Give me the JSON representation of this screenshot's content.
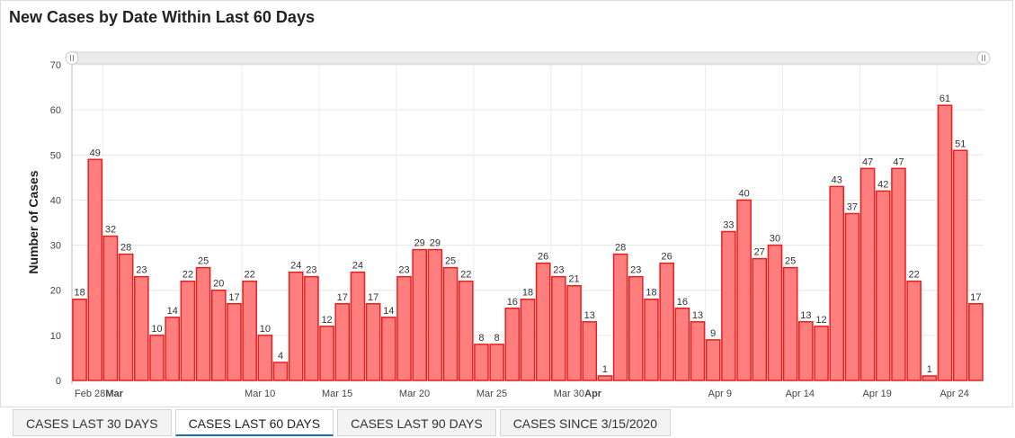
{
  "title": "New Cases by Date Within Last 60 Days",
  "tabs": [
    {
      "label": "CASES LAST 30 DAYS",
      "active": false
    },
    {
      "label": "CASES LAST 60 DAYS",
      "active": true
    },
    {
      "label": "CASES LAST 90 DAYS",
      "active": false
    },
    {
      "label": "CASES SINCE 3/15/2020",
      "active": false
    }
  ],
  "colors": {
    "bar_fill": "#ff7f7f",
    "bar_stroke": "#e81f1f",
    "active_tab_underline": "#1a6fb4"
  },
  "chart_data": {
    "type": "bar",
    "ylabel": "Number of Cases",
    "ylim": [
      0,
      70
    ],
    "yticks": [
      0,
      10,
      20,
      30,
      40,
      50,
      60,
      70
    ],
    "grid": true,
    "data_labels": true,
    "x_tick_labels": [
      {
        "label": "Feb 28",
        "index": 0,
        "bold": false
      },
      {
        "label": "Mar",
        "index": 2,
        "bold": true
      },
      {
        "label": "Mar 10",
        "index": 11,
        "bold": false
      },
      {
        "label": "Mar 15",
        "index": 16,
        "bold": false
      },
      {
        "label": "Mar 20",
        "index": 21,
        "bold": false
      },
      {
        "label": "Mar 25",
        "index": 26,
        "bold": false
      },
      {
        "label": "Mar 30",
        "index": 31,
        "bold": false
      },
      {
        "label": "Apr",
        "index": 33,
        "bold": true
      },
      {
        "label": "Apr 9",
        "index": 41,
        "bold": false
      },
      {
        "label": "Apr 14",
        "index": 46,
        "bold": false
      },
      {
        "label": "Apr 19",
        "index": 51,
        "bold": false
      },
      {
        "label": "Apr 24",
        "index": 56,
        "bold": false
      }
    ],
    "values": [
      18,
      49,
      32,
      28,
      23,
      10,
      14,
      22,
      25,
      20,
      17,
      22,
      10,
      4,
      24,
      23,
      12,
      17,
      24,
      17,
      14,
      23,
      29,
      29,
      25,
      22,
      8,
      8,
      16,
      18,
      26,
      23,
      21,
      13,
      1,
      28,
      23,
      18,
      26,
      16,
      13,
      9,
      33,
      40,
      27,
      30,
      25,
      13,
      12,
      43,
      37,
      47,
      42,
      47,
      22,
      1,
      61,
      51,
      17
    ]
  }
}
